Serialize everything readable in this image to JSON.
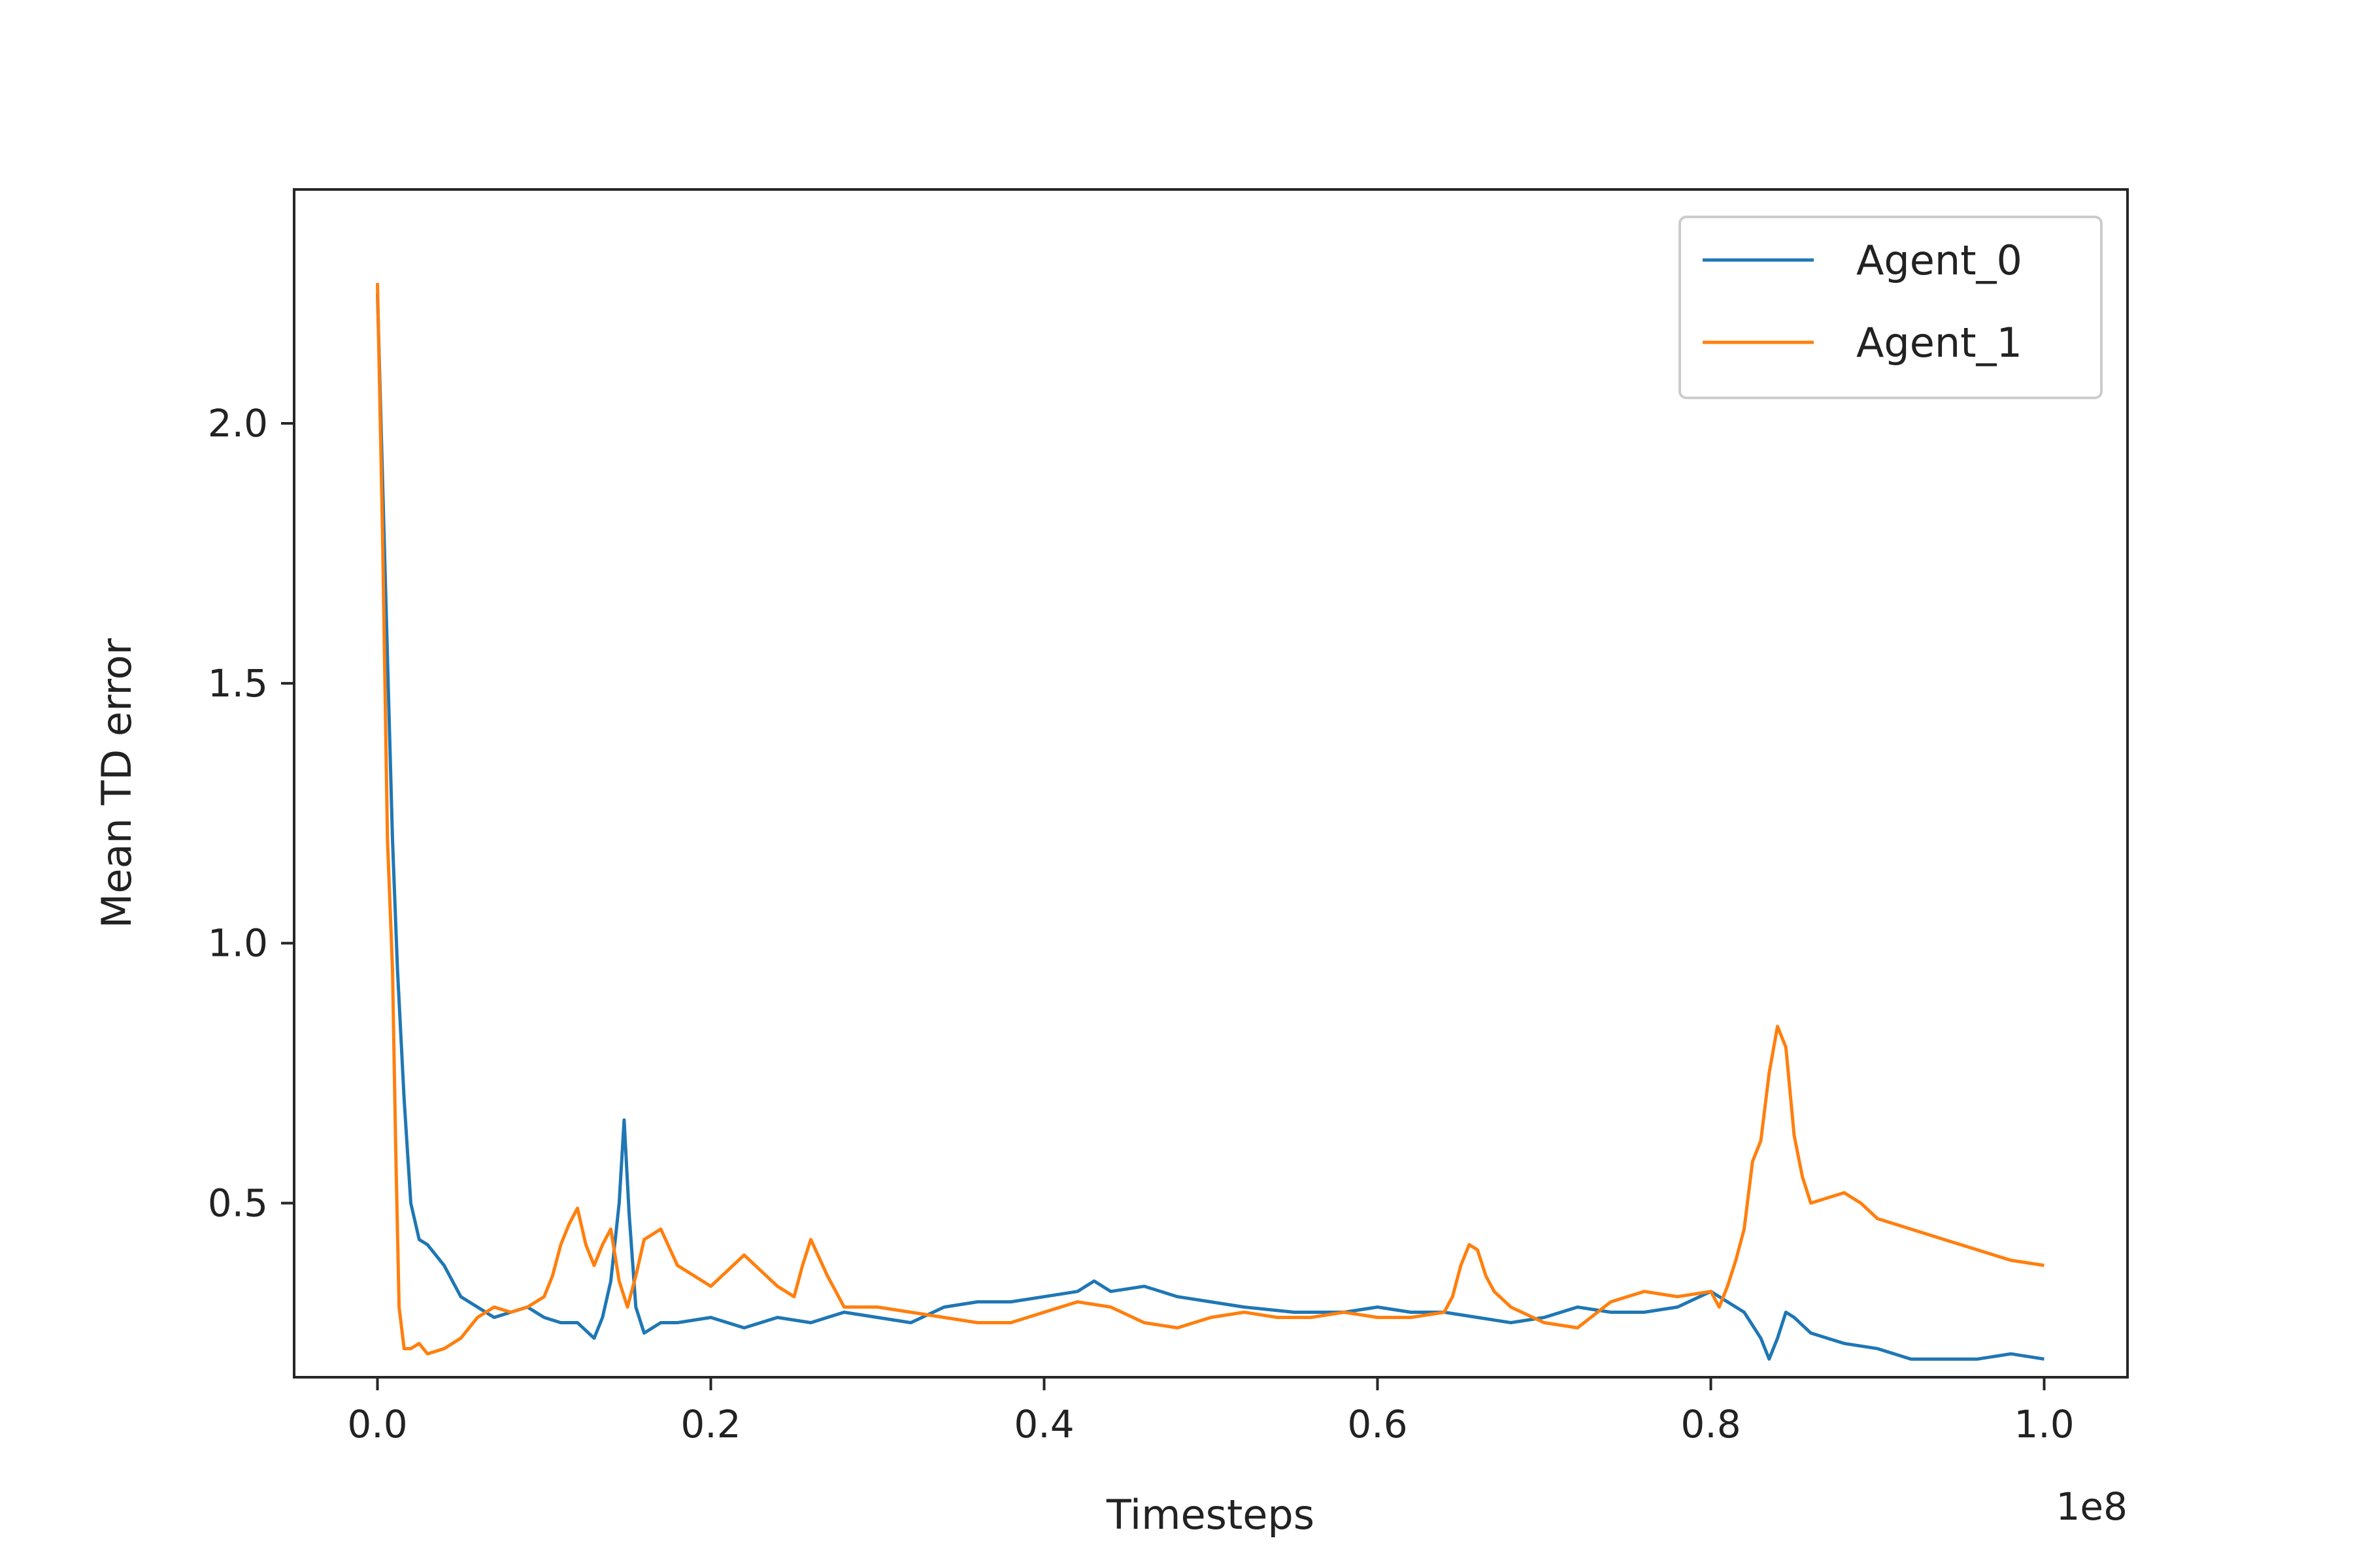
{
  "chart_data": {
    "type": "line",
    "title": "",
    "xlabel": "Timesteps",
    "ylabel": "Mean TD error",
    "x_offset_text": "1e8",
    "xlim": [
      -0.05,
      1.05
    ],
    "ylim": [
      0.165,
      2.45
    ],
    "x_ticks": [
      0.0,
      0.2,
      0.4,
      0.6,
      0.8,
      1.0
    ],
    "x_tick_labels": [
      "0.0",
      "0.2",
      "0.4",
      "0.6",
      "0.8",
      "1.0"
    ],
    "y_ticks": [
      0.5,
      1.0,
      1.5,
      2.0
    ],
    "y_tick_labels": [
      "0.5",
      "1.0",
      "1.5",
      "2.0"
    ],
    "grid": false,
    "legend_position": "top-right",
    "series": [
      {
        "name": "Agent_0",
        "color": "#1f77b4",
        "x": [
          0.0,
          0.003,
          0.006,
          0.009,
          0.012,
          0.016,
          0.02,
          0.025,
          0.03,
          0.04,
          0.05,
          0.06,
          0.07,
          0.08,
          0.09,
          0.1,
          0.11,
          0.12,
          0.13,
          0.135,
          0.14,
          0.145,
          0.148,
          0.151,
          0.155,
          0.16,
          0.17,
          0.18,
          0.2,
          0.22,
          0.24,
          0.26,
          0.28,
          0.3,
          0.32,
          0.34,
          0.36,
          0.38,
          0.4,
          0.42,
          0.43,
          0.44,
          0.46,
          0.48,
          0.5,
          0.52,
          0.55,
          0.58,
          0.6,
          0.62,
          0.64,
          0.66,
          0.68,
          0.7,
          0.72,
          0.74,
          0.76,
          0.78,
          0.8,
          0.81,
          0.82,
          0.83,
          0.835,
          0.84,
          0.845,
          0.85,
          0.86,
          0.88,
          0.9,
          0.92,
          0.94,
          0.96,
          0.98,
          1.0
        ],
        "y": [
          2.25,
          1.9,
          1.55,
          1.2,
          0.95,
          0.7,
          0.5,
          0.43,
          0.42,
          0.38,
          0.32,
          0.3,
          0.28,
          0.29,
          0.3,
          0.28,
          0.27,
          0.27,
          0.24,
          0.28,
          0.35,
          0.5,
          0.66,
          0.48,
          0.3,
          0.25,
          0.27,
          0.27,
          0.28,
          0.26,
          0.28,
          0.27,
          0.29,
          0.28,
          0.27,
          0.3,
          0.31,
          0.31,
          0.32,
          0.33,
          0.35,
          0.33,
          0.34,
          0.32,
          0.31,
          0.3,
          0.29,
          0.29,
          0.3,
          0.29,
          0.29,
          0.28,
          0.27,
          0.28,
          0.3,
          0.29,
          0.29,
          0.3,
          0.33,
          0.31,
          0.29,
          0.24,
          0.2,
          0.24,
          0.29,
          0.28,
          0.25,
          0.23,
          0.22,
          0.2,
          0.2,
          0.2,
          0.21,
          0.2
        ]
      },
      {
        "name": "Agent_1",
        "color": "#ff7f0e",
        "x": [
          0.0,
          0.003,
          0.006,
          0.009,
          0.011,
          0.013,
          0.016,
          0.02,
          0.025,
          0.03,
          0.04,
          0.05,
          0.06,
          0.07,
          0.08,
          0.09,
          0.1,
          0.105,
          0.11,
          0.115,
          0.12,
          0.125,
          0.13,
          0.135,
          0.14,
          0.145,
          0.15,
          0.155,
          0.16,
          0.17,
          0.18,
          0.2,
          0.21,
          0.22,
          0.23,
          0.24,
          0.25,
          0.255,
          0.26,
          0.27,
          0.28,
          0.3,
          0.32,
          0.34,
          0.36,
          0.38,
          0.4,
          0.42,
          0.44,
          0.46,
          0.48,
          0.5,
          0.52,
          0.54,
          0.56,
          0.58,
          0.6,
          0.62,
          0.64,
          0.645,
          0.65,
          0.655,
          0.66,
          0.665,
          0.67,
          0.68,
          0.7,
          0.72,
          0.74,
          0.76,
          0.78,
          0.8,
          0.805,
          0.81,
          0.815,
          0.82,
          0.825,
          0.83,
          0.835,
          0.84,
          0.845,
          0.85,
          0.855,
          0.86,
          0.87,
          0.88,
          0.89,
          0.9,
          0.92,
          0.94,
          0.96,
          0.98,
          1.0
        ],
        "y": [
          2.27,
          1.8,
          1.2,
          0.95,
          0.6,
          0.3,
          0.22,
          0.22,
          0.23,
          0.21,
          0.22,
          0.24,
          0.28,
          0.3,
          0.29,
          0.3,
          0.32,
          0.36,
          0.42,
          0.46,
          0.49,
          0.42,
          0.38,
          0.42,
          0.45,
          0.35,
          0.3,
          0.36,
          0.43,
          0.45,
          0.38,
          0.34,
          0.37,
          0.4,
          0.37,
          0.34,
          0.32,
          0.38,
          0.43,
          0.36,
          0.3,
          0.3,
          0.29,
          0.28,
          0.27,
          0.27,
          0.29,
          0.31,
          0.3,
          0.27,
          0.26,
          0.28,
          0.29,
          0.28,
          0.28,
          0.29,
          0.28,
          0.28,
          0.29,
          0.32,
          0.38,
          0.42,
          0.41,
          0.36,
          0.33,
          0.3,
          0.27,
          0.26,
          0.31,
          0.33,
          0.32,
          0.33,
          0.3,
          0.34,
          0.39,
          0.45,
          0.58,
          0.62,
          0.75,
          0.84,
          0.8,
          0.63,
          0.55,
          0.5,
          0.51,
          0.52,
          0.5,
          0.47,
          0.45,
          0.43,
          0.41,
          0.39,
          0.38
        ]
      }
    ]
  }
}
